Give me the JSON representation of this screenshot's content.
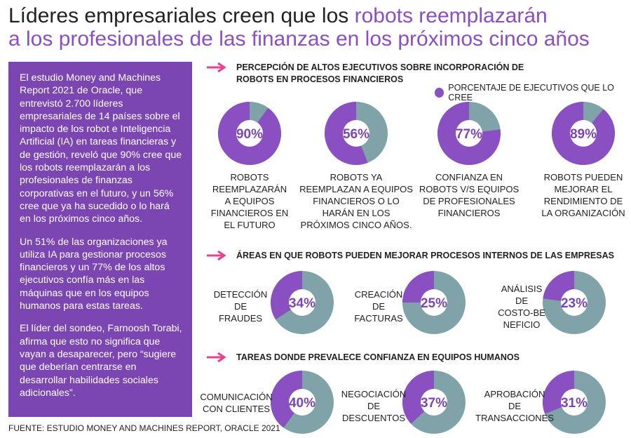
{
  "title": {
    "part1": "Líderes empresariales creen que los ",
    "part2": "robots reemplazarán",
    "part3": "a los profesionales de las finanzas en los próximos cinco años"
  },
  "sidebar": {
    "p1": "El estudio Money and Machines Report 2021 de Oracle, que entrevistó 2.700 líderes empresariales de 14 países sobre el impacto de los robot e Inteligencia Artificial (IA) en tareas financieras y de gestión, reveló que 90% cree que los robots reemplazarán a los profesionales de finanzas corporativas en el futuro, y un 56% cree que ya ha sucedido o lo hará en los próximos cinco años.",
    "p2": "Un 51% de las organizaciones ya utiliza IA para gestionar procesos financieros y un 77% de los altos ejecutivos confía más en las máquinas que en los equipos humanos para estas tareas.",
    "p3": "El líder del sondeo, Farnoosh Torabi, afirma que esto no significa que vayan a desaparecer, pero “sugiere que deberían centrarse en desarrollar habilidades sociales adicionales”."
  },
  "source": "FUENTE: ESTUDIO MONEY AND MACHINES REPORT, ORACLE 2021",
  "legend": "PORCENTAJE DE EJECUTIVOS QUE LO CREE",
  "colors": {
    "purple": "#8a4fc0",
    "gray": "#7fa3a8",
    "arrow": "#e8408d",
    "sidebar": "#7b45b2"
  },
  "chart_data": [
    {
      "type": "pie",
      "title": "PERCEPCIÓN DE ALTOS EJECUTIVOS SOBRE INCORPORACIÓN DE ROBOTS EN PROCESOS FINANCIEROS",
      "legend": "PORCENTAJE DE EJECUTIVOS QUE LO CREE",
      "categories": [
        "ROBOTS REEMPLAZARÁN A EQUIPOS FINANCIEROS EN EL FUTURO",
        "ROBOTS YA REEMPLAZAN A EQUIPOS FINANCIEROS O LO HARÁN EN LOS PRÓXIMOS CINCO AÑOS.",
        "CONFIANZA EN ROBOTS V/S EQUIPOS DE PROFESIONALES FINANCIEROS",
        "ROBOTS PUEDEN MEJORAR EL RENDIMIENTO DE LA ORGANIZACIÓN"
      ],
      "values": [
        90,
        56,
        77,
        89
      ],
      "value_labels": [
        "90%",
        "56%",
        "77%",
        "89%"
      ]
    },
    {
      "type": "pie",
      "title": "ÁREAS EN QUE ROBOTS PUEDEN MEJORAR PROCESOS INTERNOS DE LAS EMPRESAS",
      "categories": [
        "DETECCIÓN DE FRAUDES",
        "CREACIÓN DE FACTURAS",
        "ANÁLISIS DE COSTO-BENEFICIO"
      ],
      "values": [
        34,
        25,
        23
      ],
      "value_labels": [
        "34%",
        "25%",
        "23%"
      ]
    },
    {
      "type": "pie",
      "title": "TAREAS DONDE PREVALECE CONFIANZA EN EQUIPOS HUMANOS",
      "categories": [
        "COMUNICACIÓN CON CLIENTES",
        "NEGOCIACIÓN DE DESCUENTOS",
        "APROBACIÓN DE TRANSACCIONES"
      ],
      "values": [
        40,
        37,
        31
      ],
      "value_labels": [
        "40%",
        "37%",
        "31%"
      ]
    }
  ],
  "labels": {
    "s1": [
      [
        "ROBOTS",
        "REEMPLAZARÁN",
        "A EQUIPOS",
        "FINANCIEROS EN",
        "EL FUTURO"
      ],
      [
        "ROBOTS YA",
        "REEMPLAZAN A EQUIPOS",
        "FINANCIEROS O LO",
        "HARÁN EN LOS",
        "PRÓXIMOS CINCO AÑOS."
      ],
      [
        "CONFIANZA EN",
        "ROBOTS V/S EQUIPOS",
        "DE PROFESIONALES",
        "FINANCIEROS"
      ],
      [
        "ROBOTS PUEDEN",
        "MEJORAR EL",
        "RENDIMIENTO DE",
        "LA ORGANIZACIÓN"
      ]
    ],
    "s2": [
      [
        "DETECCIÓN",
        "DE",
        "FRAUDES"
      ],
      [
        "CREACIÓN",
        "DE",
        "FACTURAS"
      ],
      [
        "ANÁLISIS",
        "DE",
        "COSTO-BE",
        "NEFICIO"
      ]
    ],
    "s3": [
      [
        "COMUNICACIÓN",
        "CON CLIENTES"
      ],
      [
        "NEGOCIACIÓN",
        "DE",
        "DESCUENTOS"
      ],
      [
        "APROBACIÓN",
        "DE",
        "TRANSACCIONES"
      ]
    ]
  }
}
